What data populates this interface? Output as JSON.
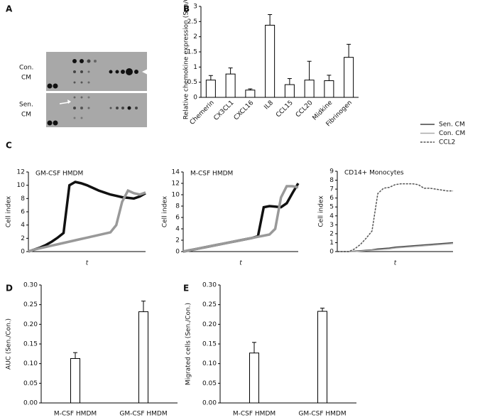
{
  "figure": {
    "panel_labels": [
      "A",
      "B",
      "C",
      "D",
      "E"
    ],
    "blot_labels": [
      "Con.",
      "CM",
      "Sen.",
      "CM"
    ]
  },
  "chart_data": [
    {
      "type": "bar",
      "ylabel": "Relative chemokine expression (Sen/Con.)",
      "categories": [
        "Chemerin",
        "CX3CL1",
        "CXCL16",
        "IL8",
        "CCL15",
        "CCL20",
        "Midkine",
        "Fibrinogen"
      ],
      "values": [
        0.57,
        0.77,
        0.24,
        2.38,
        0.42,
        0.57,
        0.55,
        1.32
      ],
      "errors": [
        0.15,
        0.2,
        0.04,
        0.35,
        0.2,
        0.62,
        0.18,
        0.43
      ],
      "color": "#ffffff",
      "ylim": [
        0,
        3
      ],
      "yticks": [
        0,
        0.5,
        1,
        1.5,
        2,
        2.5,
        3
      ]
    },
    {
      "type": "line",
      "title": "GM-CSF HMDM",
      "xlabel": "t",
      "ylabel": "Cell index",
      "ylim": [
        0,
        12
      ],
      "yticks": [
        0,
        2,
        4,
        6,
        8,
        10,
        12
      ],
      "series": [
        {
          "color": "#111111",
          "values": [
            0,
            0.3,
            0.6,
            1,
            1.5,
            2.1,
            2.8,
            10,
            10.5,
            10.3,
            10,
            9.6,
            9.2,
            8.9,
            8.6,
            8.4,
            8.2,
            8.1,
            8,
            8.3,
            8.8
          ]
        },
        {
          "color": "#999999",
          "values": [
            0,
            0.3,
            0.5,
            0.7,
            0.9,
            1.1,
            1.3,
            1.5,
            1.7,
            1.9,
            2.1,
            2.3,
            2.5,
            2.7,
            2.9,
            4,
            7.5,
            9.2,
            8.8,
            8.6,
            8.9
          ]
        }
      ]
    },
    {
      "type": "line",
      "title": "M-CSF HMDM",
      "xlabel": "t",
      "ylabel": "Cell index",
      "ylim": [
        0,
        14
      ],
      "yticks": [
        0,
        2,
        4,
        6,
        8,
        10,
        12,
        14
      ],
      "series": [
        {
          "color": "#111111",
          "values": [
            0,
            0.2,
            0.4,
            0.6,
            0.8,
            1,
            1.2,
            1.4,
            1.6,
            1.8,
            2,
            2.2,
            2.4,
            2.7,
            7.8,
            8,
            7.9,
            7.8,
            8.5,
            10.3,
            12
          ]
        },
        {
          "color": "#999999",
          "values": [
            0,
            0.2,
            0.4,
            0.6,
            0.8,
            1,
            1.2,
            1.4,
            1.6,
            1.8,
            2,
            2.2,
            2.4,
            2.6,
            2.8,
            3,
            4,
            9.5,
            11.5,
            11.5,
            11.3
          ]
        }
      ]
    },
    {
      "type": "line",
      "title": "CD14+ Monocytes",
      "xlabel": "t",
      "ylabel": "Cell index",
      "ylim": [
        0,
        9
      ],
      "yticks": [
        0,
        1,
        2,
        3,
        4,
        5,
        6,
        7,
        8,
        9
      ],
      "legend": "upper right",
      "series": [
        {
          "name": "Sen. CM",
          "color": "#444444",
          "linestyle": "solid",
          "values": [
            0,
            0,
            0,
            0.05,
            0.1,
            0.15,
            0.2,
            0.3,
            0.35,
            0.4,
            0.5,
            0.55,
            0.6,
            0.65,
            0.7,
            0.75,
            0.8,
            0.85,
            0.9,
            0.95,
            1
          ]
        },
        {
          "name": "Con. CM",
          "color": "#aaaaaa",
          "linestyle": "solid",
          "values": [
            0,
            0,
            0,
            0,
            0.05,
            0.1,
            0.15,
            0.2,
            0.25,
            0.3,
            0.4,
            0.45,
            0.5,
            0.55,
            0.6,
            0.65,
            0.7,
            0.75,
            0.8,
            0.85,
            0.9
          ]
        },
        {
          "name": "CCL2",
          "color": "#555555",
          "linestyle": "dashed",
          "values": [
            0,
            0,
            0,
            0.3,
            0.8,
            1.5,
            2.3,
            6.5,
            7.1,
            7.2,
            7.5,
            7.6,
            7.6,
            7.6,
            7.5,
            7.1,
            7.1,
            7,
            6.9,
            6.8,
            6.8
          ]
        }
      ]
    },
    {
      "type": "bar",
      "ylabel": "AUC (Sen./Con.)",
      "categories": [
        "M-CSF HMDM",
        "GM-CSF HMDM"
      ],
      "values": [
        0.113,
        0.232
      ],
      "errors": [
        0.015,
        0.027
      ],
      "color": "#ffffff",
      "ylim": [
        0,
        0.3
      ],
      "yticks": [
        {
          "value": 0,
          "label": "0.00"
        },
        {
          "value": 0.05,
          "label": "0.05"
        },
        {
          "value": 0.1,
          "label": "0.10"
        },
        {
          "value": 0.15,
          "label": "0.15"
        },
        {
          "value": 0.2,
          "label": "0.20"
        },
        {
          "value": 0.25,
          "label": "0.25"
        },
        {
          "value": 0.3,
          "label": "0.30"
        }
      ]
    },
    {
      "type": "bar",
      "ylabel": "Migrated cells (Sen./Con.)",
      "categories": [
        "M-CSF HMDM",
        "GM-CSF HMDM"
      ],
      "values": [
        0.127,
        0.233
      ],
      "errors": [
        0.027,
        0.008
      ],
      "color": "#ffffff",
      "ylim": [
        0,
        0.3
      ],
      "yticks": [
        {
          "value": 0,
          "label": "0.00"
        },
        {
          "value": 0.05,
          "label": "0.05"
        },
        {
          "value": 0.1,
          "label": "0.10"
        },
        {
          "value": 0.15,
          "label": "0.15"
        },
        {
          "value": 0.2,
          "label": "0.20"
        },
        {
          "value": 0.25,
          "label": "0.25"
        },
        {
          "value": 0.3,
          "label": "0.30"
        }
      ]
    }
  ]
}
